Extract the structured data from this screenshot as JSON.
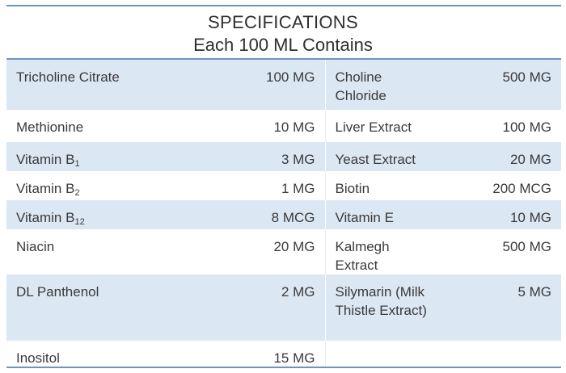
{
  "header": {
    "title": "SPECIFICATIONS",
    "subtitle": "Each 100 ML Contains"
  },
  "rows": [
    {
      "left_name": "Tricholine Citrate",
      "left_qty": "100 MG",
      "right_name": "Choline Chloride",
      "right_qty": "500 MG"
    },
    {
      "left_name": "Methionine",
      "left_qty": "10 MG",
      "right_name": "Liver Extract",
      "right_qty": "100 MG"
    },
    {
      "left_name_base": "Vitamin B",
      "left_name_sub": "1",
      "left_qty": "3 MG",
      "right_name": "Yeast Extract",
      "right_qty": "20 MG"
    },
    {
      "left_name_base": "Vitamin B",
      "left_name_sub": "2",
      "left_qty": "1 MG",
      "right_name": "Biotin",
      "right_qty": "200 MCG"
    },
    {
      "left_name_base": "Vitamin B",
      "left_name_sub": "12",
      "left_qty": "8 MCG",
      "right_name": "Vitamin E",
      "right_qty": "10 MG"
    },
    {
      "left_name": "Niacin",
      "left_qty": "20 MG",
      "right_name": "Kalmegh Extract",
      "right_qty": "500 MG"
    },
    {
      "left_name": "DL Panthenol",
      "left_qty": "2 MG",
      "right_name": "Silymarin (Milk Thistle Extract)",
      "right_qty": "5 MG"
    },
    {
      "left_name": "Inositol",
      "left_qty": "15 MG",
      "right_name": "",
      "right_qty": ""
    }
  ]
}
